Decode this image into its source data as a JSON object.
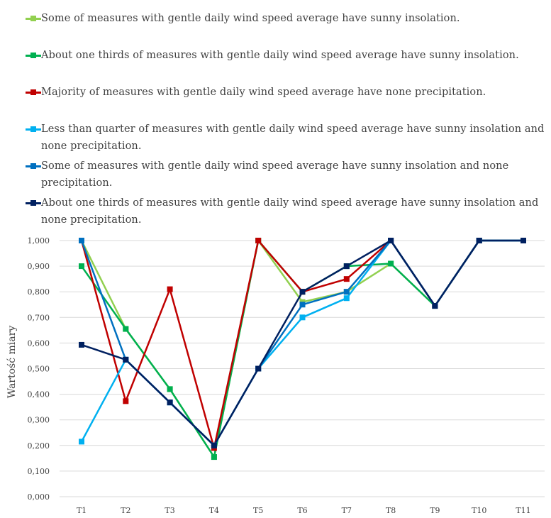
{
  "chart_data": {
    "type": "line",
    "title": "",
    "xlabel": "",
    "ylabel": "Wartość miary",
    "ylim": [
      0,
      1
    ],
    "categories": [
      "T1",
      "T2",
      "T3",
      "T4",
      "T5",
      "T6",
      "T7",
      "T8",
      "T9",
      "T10",
      "T11"
    ],
    "yticks": [
      "0,000",
      "0,100",
      "0,200",
      "0,300",
      "0,400",
      "0,500",
      "0,600",
      "0,700",
      "0,800",
      "0,900",
      "1,000"
    ],
    "grid": true,
    "legend_position": "top",
    "series": [
      {
        "name": "Some of measures with gentle daily wind speed average have sunny insolation.",
        "color": "#92d050",
        "values": [
          1.0,
          0.655,
          0.42,
          0.155,
          1.0,
          0.76,
          0.8,
          0.91,
          0.745,
          1.0,
          1.0
        ]
      },
      {
        "name": "About one thirds of measures with gentle daily wind speed average have sunny insolation.",
        "color": "#00b050",
        "values": [
          0.9,
          0.655,
          0.42,
          0.155,
          1.0,
          0.8,
          0.9,
          0.91,
          0.745,
          1.0,
          1.0
        ]
      },
      {
        "name": "Majority of measures with gentle daily wind speed average have none precipitation.",
        "color": "#c00000",
        "values": [
          1.0,
          0.373,
          0.81,
          0.19,
          1.0,
          0.8,
          0.85,
          1.0,
          0.745,
          1.0,
          1.0
        ]
      },
      {
        "name": "Less than quarter of measures with gentle daily wind speed average have sunny insolation and none precipitation.",
        "color": "#00b0f0",
        "values": [
          0.215,
          0.535,
          0.368,
          0.2,
          0.5,
          0.7,
          0.775,
          1.0,
          0.745,
          1.0,
          1.0
        ]
      },
      {
        "name": "Some of measures with gentle daily wind speed average have sunny insolation and none precipitation.",
        "color": "#0070c0",
        "values": [
          1.0,
          0.535,
          0.368,
          0.2,
          0.5,
          0.75,
          0.8,
          1.0,
          0.745,
          1.0,
          1.0
        ]
      },
      {
        "name": "About one thirds of measures with gentle daily wind speed average have sunny insolation and none precipitation.",
        "color": "#002060",
        "values": [
          0.593,
          0.535,
          0.368,
          0.2,
          0.5,
          0.8,
          0.9,
          1.0,
          0.745,
          1.0,
          1.0
        ]
      }
    ]
  }
}
